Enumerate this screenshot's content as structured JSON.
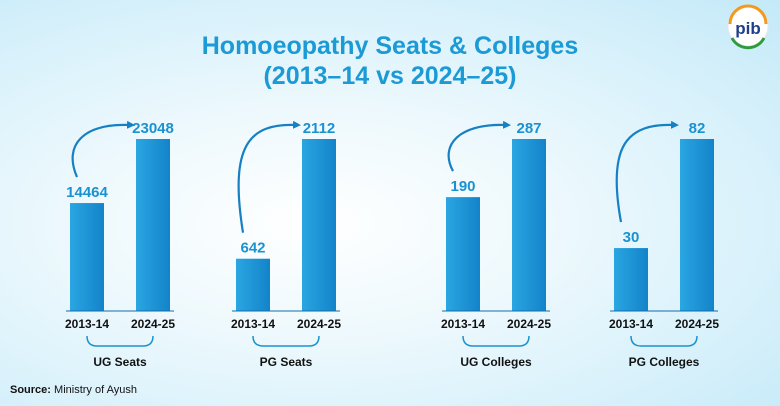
{
  "title_line1": "Homoeopathy Seats & Colleges",
  "title_line2": "(2013–14 vs 2024–25)",
  "source_label": "Source:",
  "source_text": "Ministry of Ayush",
  "logo_text": "pib",
  "colors": {
    "title": "#1b9ad6",
    "bar": "#1a8fd3",
    "value": "#1b92d0",
    "arrow": "#1580c4"
  },
  "chart_data": [
    {
      "type": "bar",
      "group_label": "UG Seats",
      "categories": [
        "2013-14",
        "2024-25"
      ],
      "values": [
        14464,
        23048
      ]
    },
    {
      "type": "bar",
      "group_label": "PG Seats",
      "categories": [
        "2013-14",
        "2024-25"
      ],
      "values": [
        642,
        2112
      ]
    },
    {
      "type": "bar",
      "group_label": "UG Colleges",
      "categories": [
        "2013-14",
        "2024-25"
      ],
      "values": [
        190,
        287
      ]
    },
    {
      "type": "bar",
      "group_label": "PG Colleges",
      "categories": [
        "2013-14",
        "2024-25"
      ],
      "values": [
        30,
        82
      ]
    }
  ]
}
